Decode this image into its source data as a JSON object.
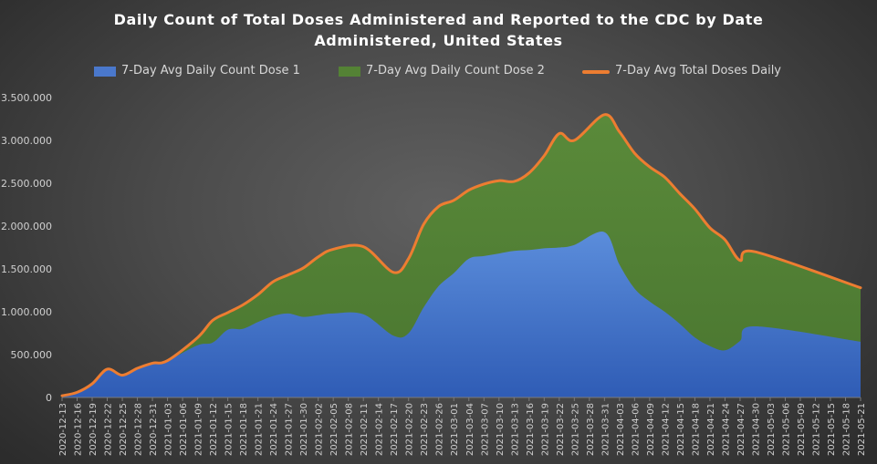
{
  "chart_data": {
    "type": "area",
    "title": [
      "Daily Count of Total Doses Administered and Reported to the CDC by Date",
      "Administered, United States"
    ],
    "y_ticks": [
      "0",
      "500.000",
      "1.000.000",
      "1.500.000",
      "2.000.000",
      "2.500.000",
      "3.000.000",
      "3.500.000"
    ],
    "ylim": [
      0,
      3500000
    ],
    "grid": false,
    "legend_position": "top",
    "x_ticks": [
      "2020-12-13",
      "2020-12-16",
      "2020-12-19",
      "2020-12-22",
      "2020-12-25",
      "2020-12-28",
      "2020-12-31",
      "2021-01-03",
      "2021-01-06",
      "2021-01-09",
      "2021-01-12",
      "2021-01-15",
      "2021-01-18",
      "2021-01-21",
      "2021-01-24",
      "2021-01-27",
      "2021-01-30",
      "2021-02-02",
      "2021-02-05",
      "2021-02-08",
      "2021-02-11",
      "2021-02-14",
      "2021-02-17",
      "2021-02-20",
      "2021-02-23",
      "2021-02-26",
      "2021-03-01",
      "2021-03-04",
      "2021-03-07",
      "2021-03-10",
      "2021-03-13",
      "2021-03-16",
      "2021-03-19",
      "2021-03-22",
      "2021-03-25",
      "2021-03-28",
      "2021-03-31",
      "2021-04-03",
      "2021-04-06",
      "2021-04-09",
      "2021-04-12",
      "2021-04-15",
      "2021-04-18",
      "2021-04-21",
      "2021-04-24",
      "2021-04-27",
      "2021-04-30",
      "2021-05-03",
      "2021-05-06",
      "2021-05-09",
      "2021-05-12",
      "2021-05-15",
      "2021-05-18",
      "2021-05-21"
    ],
    "series": [
      {
        "name": "7-Day Avg Daily Count Dose 1",
        "type": "area",
        "color": "#4a78cc",
        "values": [
          20000,
          60000,
          160000,
          330000,
          260000,
          340000,
          400000,
          430000,
          610000,
          640000,
          790000,
          800000,
          880000,
          950000,
          980000,
          940000,
          960000,
          980000,
          970000,
          720000,
          750000,
          1050000,
          1300000,
          1450000,
          1620000,
          1650000,
          1680000,
          1710000,
          1720000,
          1740000,
          1750000,
          1780000,
          1930000,
          1550000,
          1270000,
          1120000,
          1000000,
          860000,
          700000,
          600000,
          550000,
          660000,
          830000,
          650000
        ]
      },
      {
        "name": "7-Day Avg Daily Count Dose 2",
        "type": "area",
        "color": "#548235",
        "values": [
          20000,
          60000,
          160000,
          330000,
          260000,
          340000,
          400000,
          430000,
          700000,
          900000,
          990000,
          1080000,
          1200000,
          1350000,
          1430000,
          1510000,
          1640000,
          1730000,
          1760000,
          1460000,
          1620000,
          2020000,
          2230000,
          2300000,
          2420000,
          2490000,
          2530000,
          2520000,
          2620000,
          2820000,
          3080000,
          3000000,
          3300000,
          3100000,
          2850000,
          2690000,
          2570000,
          2380000,
          2200000,
          1980000,
          1840000,
          1600000,
          1700000,
          1280000
        ]
      },
      {
        "name": "7-Day Avg Total Doses Daily",
        "type": "line",
        "color": "#ed7d31",
        "values": [
          20000,
          60000,
          160000,
          330000,
          260000,
          340000,
          400000,
          430000,
          700000,
          900000,
          990000,
          1080000,
          1200000,
          1350000,
          1430000,
          1510000,
          1640000,
          1730000,
          1760000,
          1460000,
          1620000,
          2020000,
          2230000,
          2300000,
          2420000,
          2490000,
          2530000,
          2520000,
          2620000,
          2820000,
          3080000,
          3000000,
          3300000,
          3100000,
          2850000,
          2690000,
          2570000,
          2380000,
          2200000,
          1980000,
          1840000,
          1600000,
          1700000,
          1280000
        ]
      }
    ],
    "x": [
      "2020-12-13",
      "2020-12-16",
      "2020-12-19",
      "2020-12-22",
      "2020-12-25",
      "2020-12-28",
      "2020-12-31",
      "2021-01-03",
      "2021-01-09",
      "2021-01-12",
      "2021-01-15",
      "2021-01-18",
      "2021-01-21",
      "2021-01-24",
      "2021-01-27",
      "2021-01-30",
      "2021-02-02",
      "2021-02-05",
      "2021-02-11",
      "2021-02-17",
      "2021-02-20",
      "2021-02-23",
      "2021-02-26",
      "2021-03-01",
      "2021-03-04",
      "2021-03-07",
      "2021-03-10",
      "2021-03-13",
      "2021-03-16",
      "2021-03-19",
      "2021-03-22",
      "2021-03-25",
      "2021-03-31",
      "2021-04-03",
      "2021-04-06",
      "2021-04-09",
      "2021-04-12",
      "2021-04-15",
      "2021-04-18",
      "2021-04-21",
      "2021-04-24",
      "2021-04-27",
      "2021-04-30",
      "2021-05-21"
    ]
  }
}
